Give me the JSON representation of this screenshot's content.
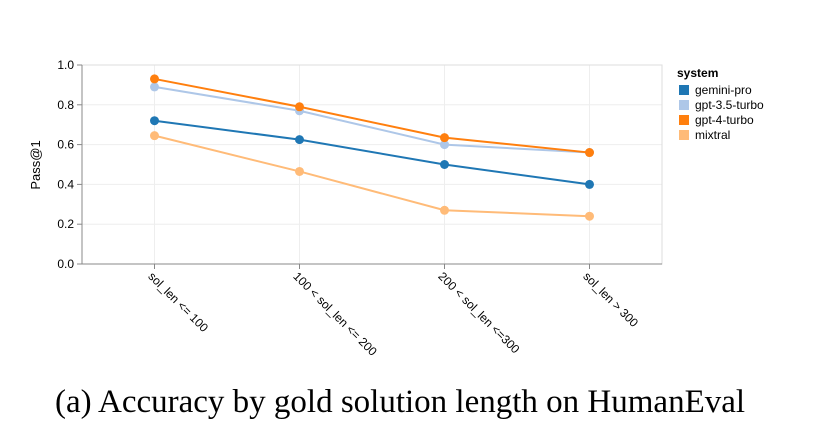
{
  "chart_data": {
    "type": "line",
    "categories": [
      "sol_len <= 100",
      "100 < sol_len <= 200",
      "200 < sol_len <=300",
      "sol_len > 300"
    ],
    "series": [
      {
        "name": "gemini-pro",
        "color": "#1f77b4",
        "values": [
          0.72,
          0.625,
          0.5,
          0.4
        ]
      },
      {
        "name": "gpt-3.5-turbo",
        "color": "#aec7e8",
        "values": [
          0.89,
          0.77,
          0.6,
          0.56
        ]
      },
      {
        "name": "gpt-4-turbo",
        "color": "#ff7f0e",
        "values": [
          0.93,
          0.79,
          0.635,
          0.56
        ]
      },
      {
        "name": "mixtral",
        "color": "#ffbb78",
        "values": [
          0.645,
          0.465,
          0.27,
          0.24
        ]
      }
    ],
    "ylabel": "Pass@1",
    "ylim": [
      0,
      1.0
    ],
    "yticks": [
      "0.0",
      "0.2",
      "0.4",
      "0.6",
      "0.8",
      "1.0"
    ],
    "grid": true,
    "legend": {
      "title": "system",
      "placement": "right"
    }
  },
  "caption": "(a) Accuracy by gold solution length on HumanEval"
}
